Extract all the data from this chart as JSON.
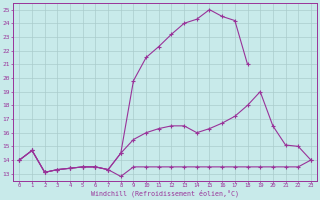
{
  "background_color": "#c8eaea",
  "line_color": "#993399",
  "grid_color": "#aacccc",
  "xlabel": "Windchill (Refroidissement éolien,°C)",
  "yticks": [
    13,
    14,
    15,
    16,
    17,
    18,
    19,
    20,
    21,
    22,
    23,
    24,
    25
  ],
  "xticks": [
    0,
    1,
    2,
    3,
    4,
    5,
    6,
    7,
    8,
    9,
    10,
    11,
    12,
    13,
    14,
    15,
    16,
    17,
    18,
    19,
    20,
    21,
    22,
    23
  ],
  "line1_x": [
    0,
    1,
    2,
    3,
    4,
    5,
    6,
    7,
    8,
    9,
    10,
    11,
    12,
    13,
    14,
    15,
    16,
    17,
    18,
    19,
    20,
    21,
    22,
    23
  ],
  "line1_y": [
    14.0,
    14.7,
    13.1,
    13.3,
    13.4,
    13.5,
    13.5,
    13.3,
    12.8,
    13.5,
    13.5,
    13.5,
    13.5,
    13.5,
    13.5,
    13.5,
    13.5,
    13.5,
    13.5,
    13.5,
    13.5,
    13.5,
    13.5,
    14.0
  ],
  "line2_x": [
    0,
    1,
    2,
    3,
    4,
    5,
    6,
    7,
    8,
    9,
    10,
    11,
    12,
    13,
    14,
    15,
    16,
    17,
    18,
    19,
    20,
    21,
    22,
    23
  ],
  "line2_y": [
    14.0,
    14.7,
    13.1,
    13.3,
    13.4,
    13.5,
    13.5,
    13.3,
    14.5,
    15.5,
    16.0,
    16.3,
    16.5,
    16.5,
    16.0,
    16.3,
    16.7,
    17.2,
    18.0,
    19.0,
    16.5,
    15.1,
    15.0,
    14.0
  ],
  "line3_x": [
    0,
    1,
    2,
    3,
    4,
    5,
    6,
    7,
    8,
    9,
    10,
    11,
    12,
    13,
    14,
    15,
    16,
    17,
    18
  ],
  "line3_y": [
    14.0,
    14.7,
    13.1,
    13.3,
    13.4,
    13.5,
    13.5,
    13.3,
    14.5,
    19.8,
    21.5,
    22.3,
    23.2,
    24.0,
    24.3,
    25.0,
    24.5,
    24.2,
    21.0
  ],
  "ylim": [
    12.5,
    25.5
  ],
  "xlim": [
    -0.5,
    23.5
  ]
}
